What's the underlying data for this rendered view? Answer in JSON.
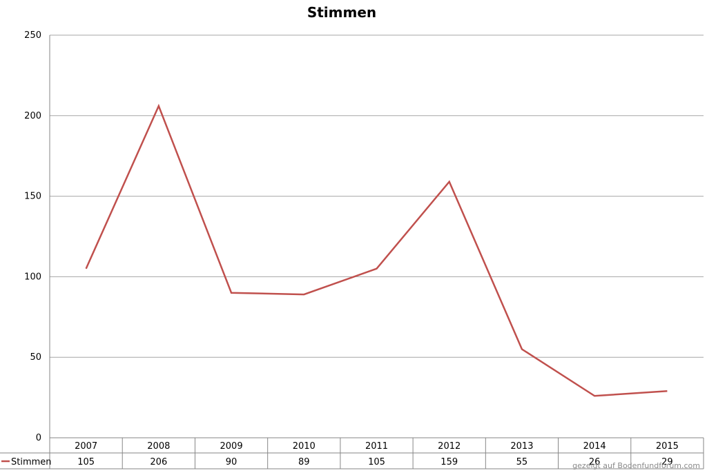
{
  "chart_data": {
    "type": "line",
    "title": "Stimmen",
    "xlabel": "",
    "ylabel": "",
    "categories": [
      "2007",
      "2008",
      "2009",
      "2010",
      "2011",
      "2012",
      "2013",
      "2014",
      "2015"
    ],
    "series": [
      {
        "name": "Stimmen",
        "color": "#c0504d",
        "values": [
          105,
          206,
          90,
          89,
          105,
          159,
          55,
          26,
          29
        ]
      }
    ],
    "ylim": [
      0,
      250
    ],
    "yticks": [
      0,
      50,
      100,
      150,
      200,
      250
    ],
    "grid": true,
    "legend": "data-table-left",
    "data_table": true
  },
  "watermark": "gezeigt auf Bodenfundforum.com",
  "colors": {
    "gridline": "#a6a6a6",
    "axis": "#868686",
    "series": "#c0504d"
  }
}
